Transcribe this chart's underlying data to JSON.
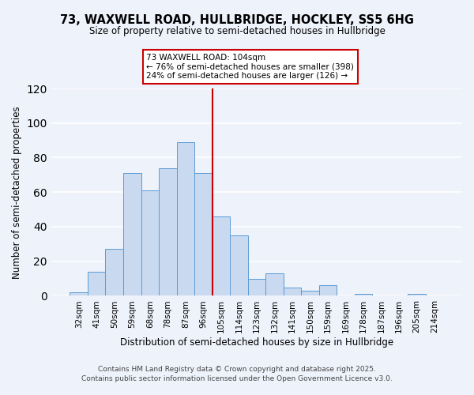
{
  "title": "73, WAXWELL ROAD, HULLBRIDGE, HOCKLEY, SS5 6HG",
  "subtitle": "Size of property relative to semi-detached houses in Hullbridge",
  "xlabel": "Distribution of semi-detached houses by size in Hullbridge",
  "ylabel": "Number of semi-detached properties",
  "bin_labels": [
    "32sqm",
    "41sqm",
    "50sqm",
    "59sqm",
    "68sqm",
    "78sqm",
    "87sqm",
    "96sqm",
    "105sqm",
    "114sqm",
    "123sqm",
    "132sqm",
    "141sqm",
    "150sqm",
    "159sqm",
    "169sqm",
    "178sqm",
    "187sqm",
    "196sqm",
    "205sqm",
    "214sqm"
  ],
  "bar_heights": [
    2,
    14,
    27,
    71,
    61,
    74,
    89,
    71,
    46,
    35,
    10,
    13,
    5,
    3,
    6,
    0,
    1,
    0,
    0,
    1,
    0
  ],
  "bar_color": "#c9d9f0",
  "bar_edge_color": "#5b9bd5",
  "vline_color": "#cc0000",
  "ylim": [
    0,
    120
  ],
  "yticks": [
    0,
    20,
    40,
    60,
    80,
    100,
    120
  ],
  "annotation_title": "73 WAXWELL ROAD: 104sqm",
  "annotation_line1": "← 76% of semi-detached houses are smaller (398)",
  "annotation_line2": "24% of semi-detached houses are larger (126) →",
  "annotation_box_color": "#cc0000",
  "footer_line1": "Contains HM Land Registry data © Crown copyright and database right 2025.",
  "footer_line2": "Contains public sector information licensed under the Open Government Licence v3.0.",
  "bg_color": "#eef2fb",
  "plot_bg_color": "#eef2fb",
  "grid_color": "#ffffff"
}
